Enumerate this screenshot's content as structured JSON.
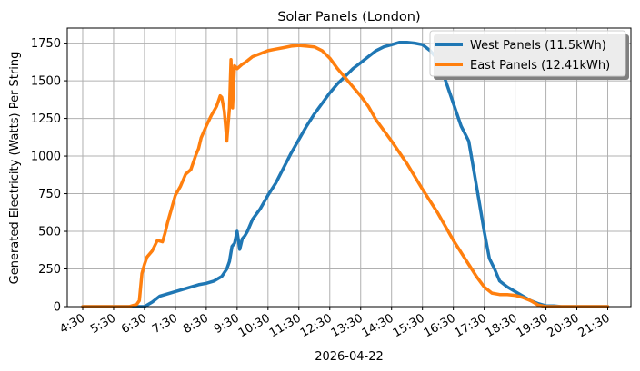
{
  "chart_data": {
    "type": "line",
    "title": "Solar Panels (London)",
    "xlabel": "2026-04-22",
    "ylabel": "Generated Electricity (Watts) Per String",
    "xlim": [
      "04:00",
      "22:15"
    ],
    "ylim": [
      0,
      1850
    ],
    "grid": true,
    "legend_position": "top-right",
    "x_ticks": [
      "4:30",
      "5:30",
      "6:30",
      "7:30",
      "8:30",
      "9:30",
      "10:30",
      "11:30",
      "12:30",
      "13:30",
      "14:30",
      "15:30",
      "16:30",
      "17:30",
      "18:30",
      "19:30",
      "20:30",
      "21:30"
    ],
    "y_ticks": [
      0,
      250,
      500,
      750,
      1000,
      1250,
      1500,
      1750
    ],
    "series": [
      {
        "name": "West Panels (11.5kWh)",
        "color": "#1f77b4",
        "x": [
          "04:30",
          "05:30",
          "06:30",
          "06:45",
          "07:00",
          "07:15",
          "07:30",
          "07:45",
          "08:00",
          "08:15",
          "08:30",
          "08:45",
          "09:00",
          "09:10",
          "09:15",
          "09:20",
          "09:25",
          "09:30",
          "09:35",
          "09:40",
          "09:45",
          "09:50",
          "10:00",
          "10:15",
          "10:30",
          "10:45",
          "11:00",
          "11:15",
          "11:30",
          "11:45",
          "12:00",
          "12:15",
          "12:30",
          "12:45",
          "13:00",
          "13:15",
          "13:30",
          "13:45",
          "14:00",
          "14:15",
          "14:30",
          "14:45",
          "15:00",
          "15:15",
          "15:30",
          "15:45",
          "16:00",
          "16:15",
          "16:30",
          "16:45",
          "17:00",
          "17:10",
          "17:20",
          "17:30",
          "17:40",
          "17:50",
          "18:00",
          "18:15",
          "18:30",
          "18:45",
          "19:00",
          "19:15",
          "19:30",
          "19:45",
          "20:00",
          "20:30",
          "21:00",
          "21:30"
        ],
        "values": [
          0,
          0,
          0,
          30,
          70,
          85,
          100,
          115,
          130,
          145,
          155,
          170,
          200,
          250,
          300,
          400,
          420,
          500,
          380,
          450,
          470,
          500,
          580,
          650,
          740,
          820,
          920,
          1020,
          1110,
          1200,
          1280,
          1350,
          1420,
          1480,
          1530,
          1580,
          1620,
          1660,
          1700,
          1725,
          1740,
          1755,
          1755,
          1750,
          1740,
          1700,
          1640,
          1500,
          1350,
          1200,
          1100,
          900,
          700,
          500,
          320,
          250,
          170,
          130,
          100,
          70,
          40,
          20,
          5,
          5,
          0,
          0,
          0,
          0
        ]
      },
      {
        "name": "East Panels (12.41kWh)",
        "color": "#ff7f0e",
        "x": [
          "04:30",
          "05:30",
          "06:00",
          "06:15",
          "06:20",
          "06:25",
          "06:30",
          "06:35",
          "06:45",
          "06:55",
          "07:05",
          "07:10",
          "07:15",
          "07:30",
          "07:40",
          "07:50",
          "08:00",
          "08:10",
          "08:15",
          "08:20",
          "08:30",
          "08:40",
          "08:50",
          "08:57",
          "09:00",
          "09:05",
          "09:10",
          "09:15",
          "09:18",
          "09:21",
          "09:25",
          "09:30",
          "09:40",
          "09:45",
          "10:00",
          "10:15",
          "10:30",
          "10:45",
          "11:00",
          "11:15",
          "11:30",
          "11:45",
          "12:00",
          "12:15",
          "12:30",
          "12:45",
          "13:00",
          "13:15",
          "13:30",
          "13:45",
          "14:00",
          "14:30",
          "15:00",
          "15:30",
          "16:00",
          "16:30",
          "17:00",
          "17:15",
          "17:30",
          "17:45",
          "18:00",
          "18:15",
          "18:30",
          "18:45",
          "19:00",
          "19:15",
          "19:30",
          "20:00",
          "21:00",
          "21:30"
        ],
        "values": [
          0,
          0,
          0,
          15,
          40,
          220,
          280,
          330,
          370,
          440,
          430,
          490,
          560,
          740,
          800,
          880,
          910,
          1010,
          1050,
          1120,
          1200,
          1270,
          1330,
          1400,
          1390,
          1300,
          1100,
          1320,
          1640,
          1320,
          1600,
          1580,
          1610,
          1620,
          1660,
          1680,
          1700,
          1710,
          1720,
          1730,
          1735,
          1730,
          1725,
          1700,
          1650,
          1580,
          1520,
          1460,
          1400,
          1330,
          1240,
          1100,
          950,
          780,
          620,
          440,
          280,
          200,
          130,
          90,
          80,
          80,
          75,
          60,
          40,
          10,
          0,
          0,
          0,
          0
        ]
      }
    ]
  }
}
